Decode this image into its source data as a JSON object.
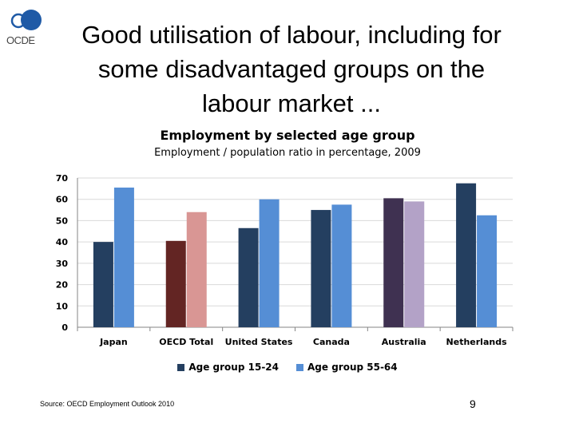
{
  "slide": {
    "title_line1": "Good utilisation of labour, including for",
    "title_line2": "some disadvantaged groups on the",
    "title_line3": "labour market ...",
    "logo_text": "OCDE",
    "source": "Source: OECD Employment Outlook 2010",
    "page_number": "9"
  },
  "chart_data": {
    "type": "bar",
    "title": "Employment by selected age group",
    "subtitle": "Employment / population ratio in percentage, 2009",
    "categories": [
      "Japan",
      "OECD Total",
      "United States",
      "Canada",
      "Australia",
      "Netherlands"
    ],
    "series": [
      {
        "name": "Age group 15-24",
        "values": [
          40,
          40.5,
          46.5,
          55,
          60.5,
          67.5
        ]
      },
      {
        "name": "Age group 55-64",
        "values": [
          65.5,
          54,
          60,
          57.5,
          59,
          52.5
        ]
      }
    ],
    "ylim": [
      0,
      70
    ],
    "yticks": [
      0,
      10,
      20,
      30,
      40,
      50,
      60,
      70
    ],
    "grid": true,
    "legend_position": "bottom",
    "colors": {
      "series1": "#243f60",
      "series2": "#558ed5",
      "oecd_series1": "#632523",
      "oecd_series2": "#d99694",
      "australia_series1": "#3f3151",
      "australia_series2": "#b3a2c7",
      "grid": "#d9d9d9",
      "axis": "#868686"
    }
  }
}
